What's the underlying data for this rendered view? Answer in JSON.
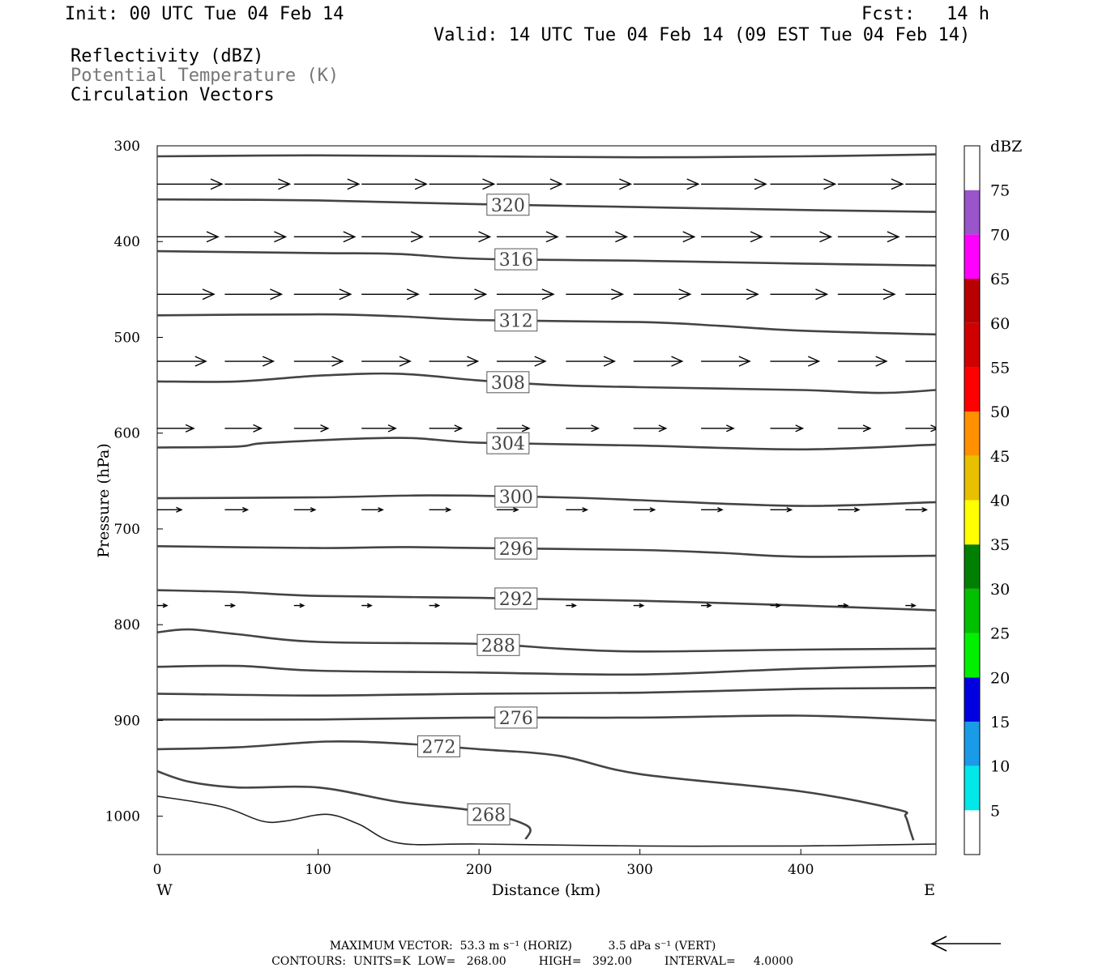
{
  "header": {
    "init": "Init: 00 UTC Tue 04 Feb 14",
    "fcst_label": "Fcst:",
    "fcst_value": "14 h",
    "valid": "Valid: 14 UTC Tue 04 Feb 14 (09 EST Tue 04 Feb 14)",
    "field1": "Reflectivity (dBZ)",
    "field2": "Potential Temperature (K)",
    "field3": "Circulation Vectors"
  },
  "chart_data": {
    "type": "cross-section",
    "xlabel": "Distance (km)",
    "ylabel": "Pressure (hPa)",
    "xlim": [
      0,
      484
    ],
    "ylim": [
      1040,
      300
    ],
    "x_ticks": [
      0,
      100,
      200,
      300,
      400
    ],
    "y_ticks": [
      300,
      400,
      500,
      600,
      700,
      800,
      900,
      1000
    ],
    "x_ends": {
      "left": "W",
      "right": "E"
    },
    "theta_contours": [
      {
        "level": 324,
        "label": "",
        "points": [
          [
            0,
            311
          ],
          [
            100,
            310
          ],
          [
            200,
            311
          ],
          [
            300,
            312
          ],
          [
            400,
            311
          ],
          [
            484,
            309
          ]
        ]
      },
      {
        "level": 320,
        "label": "320",
        "points": [
          [
            0,
            356
          ],
          [
            100,
            357
          ],
          [
            200,
            361
          ],
          [
            300,
            364
          ],
          [
            400,
            367
          ],
          [
            484,
            369
          ]
        ]
      },
      {
        "level": 316,
        "label": "316",
        "points": [
          [
            0,
            410
          ],
          [
            100,
            412
          ],
          [
            150,
            413
          ],
          [
            200,
            418
          ],
          [
            300,
            420
          ],
          [
            400,
            423
          ],
          [
            484,
            425
          ]
        ]
      },
      {
        "level": 312,
        "label": "312",
        "points": [
          [
            0,
            477
          ],
          [
            100,
            476
          ],
          [
            150,
            478
          ],
          [
            200,
            482
          ],
          [
            300,
            484
          ],
          [
            350,
            488
          ],
          [
            400,
            493
          ],
          [
            484,
            497
          ]
        ]
      },
      {
        "level": 308,
        "label": "308",
        "points": [
          [
            0,
            546
          ],
          [
            50,
            546
          ],
          [
            100,
            540
          ],
          [
            150,
            538
          ],
          [
            200,
            545
          ],
          [
            250,
            550
          ],
          [
            300,
            552
          ],
          [
            400,
            555
          ],
          [
            450,
            558
          ],
          [
            484,
            555
          ]
        ]
      },
      {
        "level": 304,
        "label": "304",
        "points": [
          [
            0,
            615
          ],
          [
            50,
            614
          ],
          [
            70,
            610
          ],
          [
            150,
            605
          ],
          [
            200,
            610
          ],
          [
            300,
            613
          ],
          [
            400,
            617
          ],
          [
            484,
            612
          ]
        ]
      },
      {
        "level": 300,
        "label": "300",
        "points": [
          [
            0,
            668
          ],
          [
            100,
            667
          ],
          [
            170,
            665
          ],
          [
            250,
            667
          ],
          [
            300,
            670
          ],
          [
            400,
            676
          ],
          [
            484,
            672
          ]
        ]
      },
      {
        "level": 296,
        "label": "296",
        "points": [
          [
            0,
            718
          ],
          [
            100,
            720
          ],
          [
            150,
            719
          ],
          [
            200,
            720
          ],
          [
            300,
            722
          ],
          [
            350,
            725
          ],
          [
            400,
            729
          ],
          [
            484,
            728
          ]
        ]
      },
      {
        "level": 292,
        "label": "292",
        "points": [
          [
            0,
            764
          ],
          [
            50,
            766
          ],
          [
            100,
            770
          ],
          [
            200,
            772
          ],
          [
            300,
            775
          ],
          [
            400,
            780
          ],
          [
            484,
            785
          ]
        ]
      },
      {
        "level": 288,
        "label": "288",
        "points": [
          [
            0,
            808
          ],
          [
            20,
            805
          ],
          [
            50,
            810
          ],
          [
            100,
            818
          ],
          [
            200,
            820
          ],
          [
            250,
            825
          ],
          [
            300,
            828
          ],
          [
            400,
            826
          ],
          [
            484,
            825
          ]
        ]
      },
      {
        "level": 284,
        "label": "",
        "points": [
          [
            0,
            844
          ],
          [
            50,
            843
          ],
          [
            100,
            848
          ],
          [
            200,
            850
          ],
          [
            300,
            852
          ],
          [
            400,
            846
          ],
          [
            484,
            843
          ]
        ]
      },
      {
        "level": 280,
        "label": "",
        "points": [
          [
            0,
            872
          ],
          [
            100,
            874
          ],
          [
            200,
            872
          ],
          [
            300,
            871
          ],
          [
            400,
            867
          ],
          [
            484,
            866
          ]
        ]
      },
      {
        "level": 276,
        "label": "276",
        "points": [
          [
            0,
            899
          ],
          [
            100,
            899
          ],
          [
            200,
            897
          ],
          [
            300,
            897
          ],
          [
            400,
            895
          ],
          [
            484,
            900
          ]
        ]
      },
      {
        "level": 272,
        "label": "272",
        "points": [
          [
            0,
            930
          ],
          [
            50,
            928
          ],
          [
            105,
            922
          ],
          [
            150,
            924
          ],
          [
            200,
            930
          ],
          [
            250,
            937
          ],
          [
            300,
            956
          ],
          [
            400,
            974
          ],
          [
            460,
            993
          ],
          [
            465,
            1000
          ],
          [
            468,
            1015
          ],
          [
            470,
            1025
          ]
        ]
      },
      {
        "level": 268,
        "label": "268",
        "points": [
          [
            0,
            953
          ],
          [
            20,
            964
          ],
          [
            50,
            970
          ],
          [
            100,
            970
          ],
          [
            150,
            985
          ],
          [
            200,
            995
          ],
          [
            230,
            1010
          ],
          [
            229,
            1024
          ]
        ]
      }
    ],
    "thin_contour": {
      "points": [
        [
          0,
          979
        ],
        [
          40,
          990
        ],
        [
          65,
          1005
        ],
        [
          80,
          1005
        ],
        [
          105,
          998
        ],
        [
          125,
          1008
        ],
        [
          150,
          1028
        ],
        [
          200,
          1029
        ],
        [
          300,
          1031
        ],
        [
          400,
          1031
        ],
        [
          484,
          1029
        ]
      ]
    },
    "vectors": {
      "xs": [
        0,
        42,
        85,
        127,
        169,
        211,
        254,
        296,
        338,
        381,
        423,
        465
      ],
      "rows": [
        {
          "p": 340,
          "lengths": [
            80,
            80,
            80,
            80,
            80,
            80,
            80,
            80,
            80,
            80,
            80,
            80
          ]
        },
        {
          "p": 395,
          "lengths": [
            75,
            75,
            75,
            75,
            75,
            75,
            75,
            75,
            75,
            75,
            75,
            75
          ]
        },
        {
          "p": 455,
          "lengths": [
            70,
            70,
            70,
            70,
            70,
            70,
            70,
            70,
            70,
            70,
            70,
            70
          ]
        },
        {
          "p": 525,
          "lengths": [
            60,
            60,
            60,
            60,
            60,
            60,
            60,
            60,
            60,
            60,
            60,
            60
          ]
        },
        {
          "p": 595,
          "lengths": [
            45,
            45,
            42,
            42,
            40,
            40,
            40,
            40,
            40,
            40,
            40,
            40
          ]
        },
        {
          "p": 680,
          "lengths": [
            30,
            28,
            26,
            26,
            26,
            26,
            26,
            26,
            26,
            26,
            26,
            26
          ]
        },
        {
          "p": 780,
          "lengths": [
            12,
            12,
            12,
            12,
            12,
            12,
            12,
            12,
            12,
            12,
            12,
            12
          ]
        }
      ]
    },
    "colorbar": {
      "unit": "dBZ",
      "levels": [
        5,
        10,
        15,
        20,
        25,
        30,
        35,
        40,
        45,
        50,
        55,
        60,
        65,
        70,
        75
      ],
      "colors": [
        "#ffffff",
        "#00e8e8",
        "#1a9be8",
        "#0000e0",
        "#00f000",
        "#00c000",
        "#008000",
        "#ffff00",
        "#e8c000",
        "#ff9000",
        "#ff0000",
        "#d00000",
        "#b80000",
        "#ff00ff",
        "#9955c9",
        "#ffffff"
      ]
    }
  },
  "footer": {
    "max_vector": "MAXIMUM VECTOR:  53.3 m s⁻¹ (HORIZ)          3.5 dPa s⁻¹ (VERT)",
    "contours": "CONTOURS:  UNITS=K  LOW=   268.00         HIGH=   392.00         INTERVAL=     4.0000"
  }
}
